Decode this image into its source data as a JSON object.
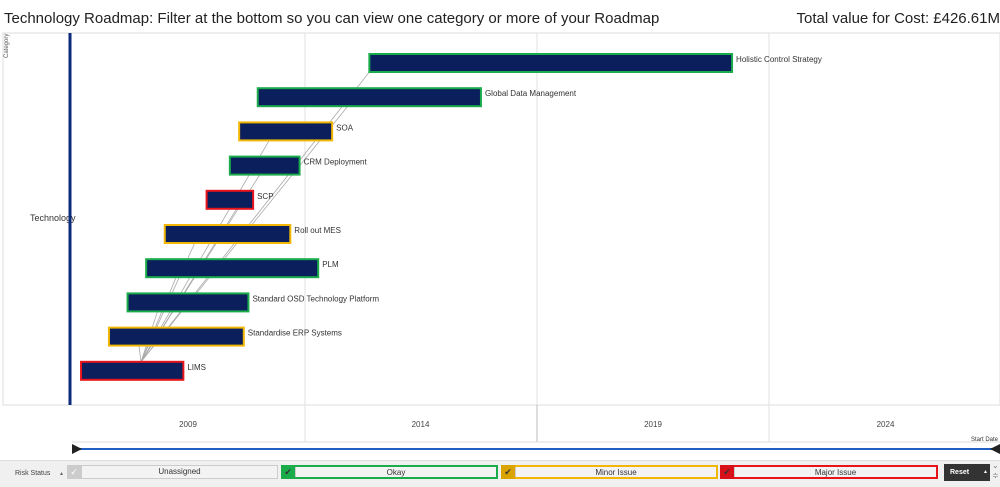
{
  "header": {
    "title": "Technology Roadmap: Filter at the bottom so you can view one category or more of your Roadmap",
    "total": "Total value for Cost: £426.61M"
  },
  "chart_data": {
    "type": "gantt",
    "ylabel": "Category",
    "xlabel": "Start Date",
    "category": "Technology",
    "x_ticks": [
      "2009",
      "2014",
      "2019",
      "2024"
    ],
    "xlim": [
      2006.3,
      2026.8
    ],
    "tasks": [
      {
        "name": "Holistic Control Strategy",
        "start": 2012.9,
        "end": 2020.7,
        "status": "Okay"
      },
      {
        "name": "Global Data Management",
        "start": 2010.5,
        "end": 2015.3,
        "status": "Okay"
      },
      {
        "name": "SOA",
        "start": 2010.1,
        "end": 2012.1,
        "status": "Minor Issue"
      },
      {
        "name": "CRM Deployment",
        "start": 2009.9,
        "end": 2011.4,
        "status": "Okay"
      },
      {
        "name": "SCP",
        "start": 2009.4,
        "end": 2010.4,
        "status": "Major Issue"
      },
      {
        "name": "Roll out MES",
        "start": 2008.5,
        "end": 2011.2,
        "status": "Minor Issue"
      },
      {
        "name": "PLM",
        "start": 2008.1,
        "end": 2011.8,
        "status": "Okay"
      },
      {
        "name": "Standard OSD Technology Platform",
        "start": 2007.7,
        "end": 2010.3,
        "status": "Okay"
      },
      {
        "name": "Standardise ERP Systems",
        "start": 2007.3,
        "end": 2010.2,
        "status": "Minor Issue"
      },
      {
        "name": "LIMS",
        "start": 2006.7,
        "end": 2008.9,
        "status": "Major Issue"
      }
    ],
    "bar_color": "#0b1f5c",
    "status_colors": {
      "Okay": "#1aab4b",
      "Minor Issue": "#f2b705",
      "Major Issue": "#e8141c",
      "Unassigned": "#999999"
    }
  },
  "filters": {
    "label": "Risk Status",
    "items": [
      {
        "label": "Unassigned",
        "checked": false
      },
      {
        "label": "Okay",
        "checked": true
      },
      {
        "label": "Minor Issue",
        "checked": true
      },
      {
        "label": "Major Issue",
        "checked": true
      }
    ],
    "reset": "Reset"
  }
}
